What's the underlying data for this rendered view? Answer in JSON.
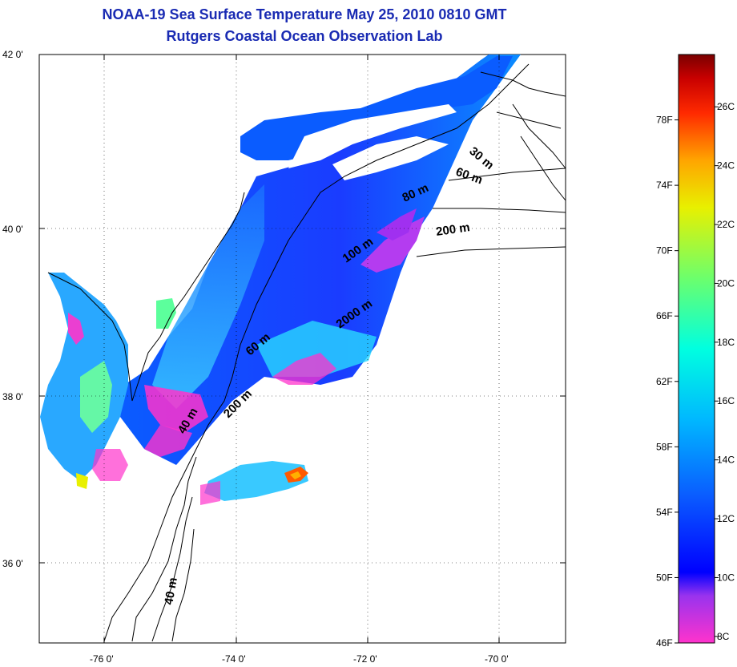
{
  "title": "NOAA-19 Sea Surface Temperature May 25, 2010 0810 GMT",
  "subtitle": "Rutgers Coastal Ocean Observation Lab",
  "lat_ticks": [
    "42 0'",
    "40 0'",
    "38 0'",
    "36 0'"
  ],
  "lon_ticks": [
    "-76 0'",
    "-74 0'",
    "-72 0'",
    "-70 0'"
  ],
  "contour_labels": [
    "30 m",
    "60 m",
    "80 m",
    "100 m",
    "200 m",
    "2000 m",
    "60 m",
    "40 m",
    "200 m",
    "40 m"
  ],
  "colorbar": {
    "fahrenheit": [
      "78F",
      "74F",
      "70F",
      "66F",
      "62F",
      "58F",
      "54F",
      "50F",
      "46F"
    ],
    "celsius": [
      "26C",
      "24C",
      "22C",
      "20C",
      "18C",
      "16C",
      "14C",
      "12C",
      "10C",
      "8C"
    ],
    "colors": [
      "#ff33cc",
      "#9933ee",
      "#0000ff",
      "#0a5cff",
      "#00b8ff",
      "#00ffe0",
      "#6cff6c",
      "#e8f000",
      "#ffa500",
      "#ff2a00",
      "#c80000",
      "#7a0000"
    ]
  }
}
